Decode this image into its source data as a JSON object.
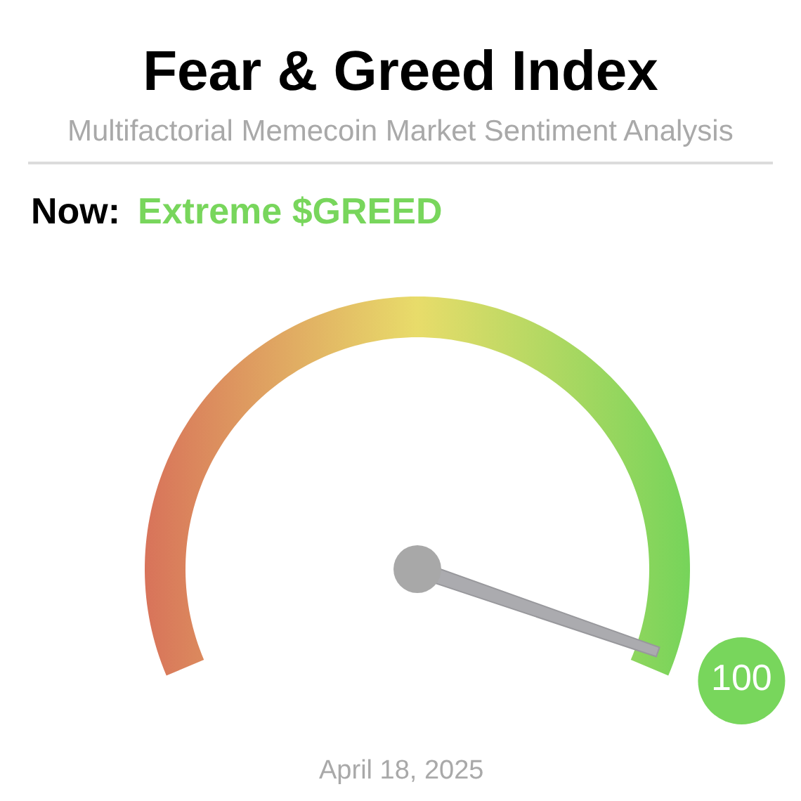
{
  "chart_data": {
    "type": "other",
    "title": "Fear & Greed Index",
    "subtitle": "Multifactorial Memecoin Market Sentiment Analysis",
    "annotations": [
      "Now:",
      "Extreme $GREED",
      "April 18, 2025"
    ],
    "values": [
      100
    ],
    "data_labels": true,
    "color": "#78d65c"
  }
}
